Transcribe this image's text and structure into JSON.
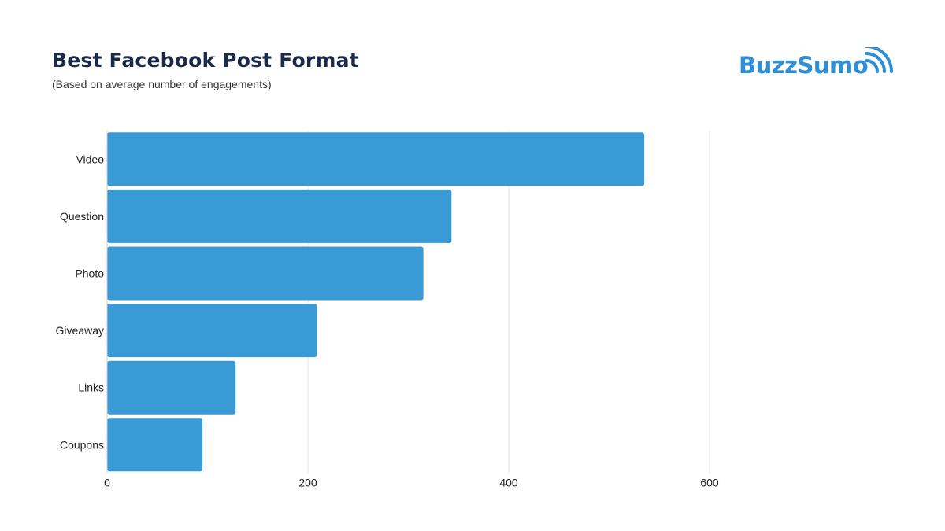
{
  "header": {
    "title": "Best Facebook Post Format",
    "subtitle": "(Based on average number of engagements)"
  },
  "logo": {
    "text": "BuzzSumo",
    "color": "#2f8fd6"
  },
  "chart_data": {
    "type": "bar",
    "orientation": "horizontal",
    "title": "Best Facebook Post Format",
    "subtitle": "(Based on average number of engagements)",
    "categories": [
      "Video",
      "Question",
      "Photo",
      "Giveaway",
      "Links",
      "Coupons"
    ],
    "values": [
      535,
      343,
      315,
      209,
      128,
      95
    ],
    "xlim": [
      0,
      600
    ],
    "xticks": [
      0,
      200,
      400,
      600
    ],
    "grid": true,
    "legend": false,
    "bar_color": "#3a9ad6"
  }
}
